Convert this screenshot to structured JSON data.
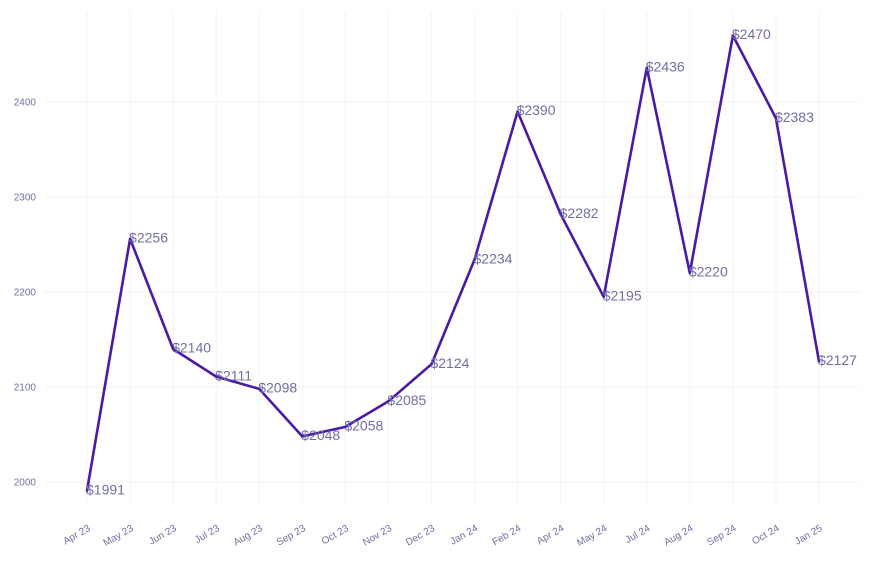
{
  "colors": {
    "line": "#4a1aa6",
    "label": "#6f6fa8",
    "grid": "#f3f3f8"
  },
  "chart_data": {
    "type": "line",
    "title": "",
    "xlabel": "",
    "ylabel": "",
    "categories": [
      "Apr 23",
      "May 23",
      "Jun 23",
      "Jul 23",
      "Aug 23",
      "Sep 23",
      "Oct 23",
      "Nov 23",
      "Dec 23",
      "Jan 24",
      "Feb 24",
      "Apr 24",
      "May 24",
      "Jul 24",
      "Aug 24",
      "Sep 24",
      "Oct 24",
      "Jan 25"
    ],
    "values": [
      1991,
      2256,
      2140,
      2111,
      2098,
      2048,
      2058,
      2085,
      2124,
      2234,
      2390,
      2282,
      2195,
      2436,
      2220,
      2470,
      2383,
      2127
    ],
    "data_labels": [
      "$1991",
      "$2256",
      "$2140",
      "$2111",
      "$2098",
      "$2048",
      "$2058",
      "$2085",
      "$2124",
      "$2234",
      "$2390",
      "$2282",
      "$2195",
      "$2436",
      "$2220",
      "$2470",
      "$2383",
      "$2127"
    ],
    "yticks": [
      2000,
      2100,
      2200,
      2300,
      2400
    ],
    "ylim": [
      1975,
      2480
    ],
    "grid": true,
    "legend": "none"
  }
}
